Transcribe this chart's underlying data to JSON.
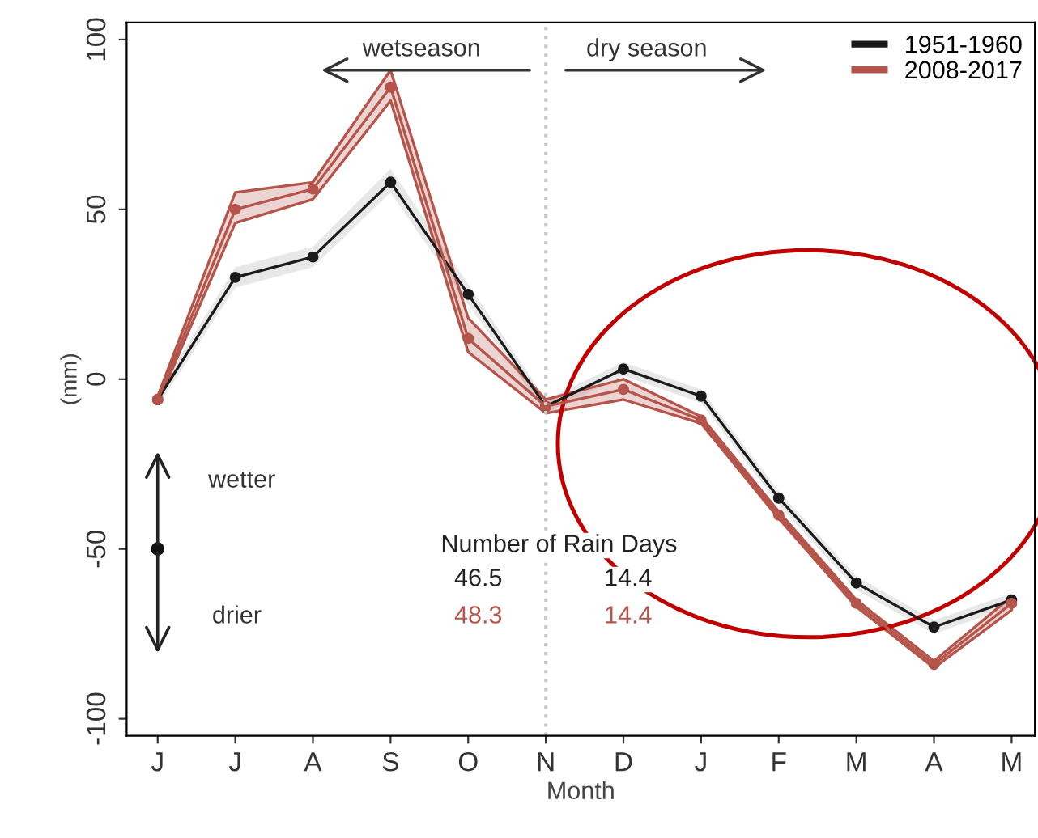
{
  "chart_data": {
    "type": "line",
    "xlabel": "Month",
    "ylabel": "(mm)",
    "categories": [
      "J",
      "J",
      "A",
      "S",
      "O",
      "N",
      "D",
      "J",
      "F",
      "M",
      "A",
      "M"
    ],
    "series": [
      {
        "name": "1951-1960",
        "color": "#1a1a1a",
        "values": [
          -6,
          30,
          36,
          58,
          25,
          -8,
          3,
          -5,
          -35,
          -60,
          -73,
          -65
        ],
        "lower": [
          -8,
          27,
          33,
          55,
          22,
          -10,
          1,
          -7,
          -37,
          -62,
          -75,
          -67
        ],
        "upper": [
          -4,
          33,
          39,
          62,
          28,
          -6,
          5,
          -3,
          -33,
          -58,
          -71,
          -63
        ]
      },
      {
        "name": "2008-2017",
        "color": "#b5544a",
        "values": [
          -6,
          50,
          56,
          86,
          12,
          -8,
          -3,
          -12,
          -40,
          -66,
          -84,
          -66
        ],
        "lower": [
          -7,
          46,
          53,
          82,
          8,
          -10,
          -6,
          -13,
          -41,
          -67,
          -85,
          -68
        ],
        "upper": [
          -5,
          55,
          58,
          91,
          18,
          -6,
          0,
          -11,
          -39,
          -65,
          -83,
          -64
        ]
      }
    ],
    "ylim": [
      -105,
      105
    ],
    "yticks": [
      -100,
      -50,
      0,
      50,
      100
    ],
    "ref_lines": [
      {
        "axis": "x",
        "value": "N",
        "line_style": "dotted",
        "color": "#cccccc"
      }
    ],
    "annotations": [
      "wetseason",
      "dry season",
      "wetter",
      "drier",
      "Number of Rain Days",
      "46.5",
      "14.4",
      "48.3",
      "14.4"
    ],
    "legend": "top right",
    "grid": false,
    "marker": "circle",
    "line_style": "solid"
  }
}
